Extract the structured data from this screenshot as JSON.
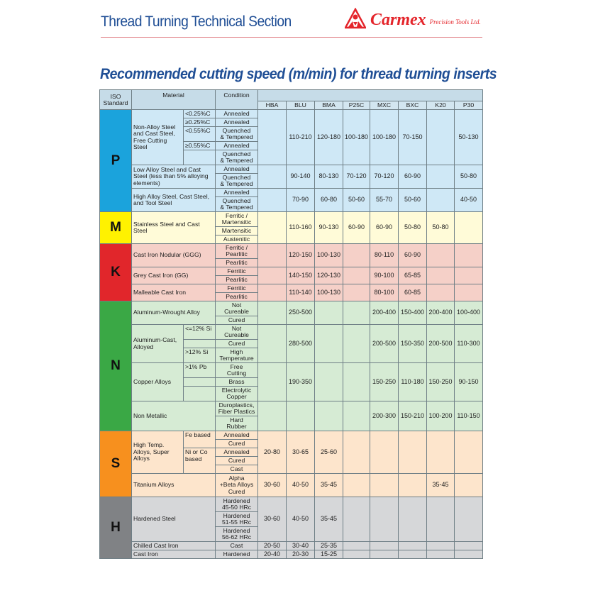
{
  "header": {
    "section_title": "Thread Turning Technical Section",
    "brand": "Carmex",
    "brand_sub": "Precision Tools Ltd.",
    "main_title": "Recommended cutting speed (m/min) for thread turning inserts"
  },
  "table": {
    "col_iso": "ISO\nStandard",
    "col_material": "Material",
    "col_condition": "Condition",
    "grades": [
      "HBA",
      "BLU",
      "BMA",
      "P25C",
      "MXC",
      "BXC",
      "K20",
      "P30"
    ],
    "groups": [
      {
        "iso": "P",
        "color": "#1ba3dc",
        "bg": "#cfe8f6",
        "materials": [
          {
            "name": "Non-Alloy Steel and Cast Steel, Free Cutting Steel",
            "sub": [
              {
                "label": "<0.25%C",
                "rows": 1
              },
              {
                "label": "≥0.25%C",
                "rows": 1
              },
              {
                "label": "<0.55%C",
                "rows": 1
              },
              {
                "label": "≥0.55%C",
                "rows": 1
              },
              {
                "label": "",
                "rows": 1
              }
            ],
            "conditions": [
              "Annealed",
              "Annealed",
              "Quenched\n& Tempered",
              "Annealed",
              "Quenched\n& Tempered"
            ],
            "speeds": [
              "",
              "110-210",
              "120-180",
              "100-180",
              "100-180",
              "70-150",
              "",
              "50-130"
            ]
          },
          {
            "name": "Low Alloy Steel and Cast Steel (less than 5% alloying elements)",
            "conditions": [
              "Annealed",
              "Quenched\n& Tempered"
            ],
            "speeds": [
              "",
              "90-140",
              "80-130",
              "70-120",
              "70-120",
              "60-90",
              "",
              "50-80"
            ]
          },
          {
            "name": "High Alloy Steel, Cast Steel, and Tool Steel",
            "conditions": [
              "Annealed",
              "Quenched\n& Tempered"
            ],
            "speeds": [
              "",
              "70-90",
              "60-80",
              "50-60",
              "55-70",
              "50-60",
              "",
              "40-50"
            ]
          }
        ]
      },
      {
        "iso": "M",
        "color": "#fff200",
        "bg": "#fffbd8",
        "materials": [
          {
            "name": "Stainless Steel and Cast Steel",
            "conditions": [
              "Ferritic /\nMartensitic",
              "Martensitic",
              "Austenitic"
            ],
            "speeds": [
              "",
              "110-160",
              "90-130",
              "60-90",
              "60-90",
              "50-80",
              "50-80",
              ""
            ]
          }
        ]
      },
      {
        "iso": "K",
        "color": "#e1262b",
        "bg": "#f5d0c8",
        "materials": [
          {
            "name": "Cast Iron Nodular (GGG)",
            "conditions": [
              "Ferritic /\nPearlitic",
              "Pearlitic"
            ],
            "speeds": [
              "",
              "120-150",
              "100-130",
              "",
              "80-110",
              "60-90",
              "",
              ""
            ]
          },
          {
            "name": "Grey Cast Iron (GG)",
            "conditions": [
              "Ferritic",
              "Pearlitic"
            ],
            "speeds": [
              "",
              "140-150",
              "120-130",
              "",
              "90-100",
              "65-85",
              "",
              ""
            ]
          },
          {
            "name": "Malleable Cast Iron",
            "conditions": [
              "Ferritic",
              "Pearlitic"
            ],
            "speeds": [
              "",
              "110-140",
              "100-130",
              "",
              "80-100",
              "60-85",
              "",
              ""
            ]
          }
        ]
      },
      {
        "iso": "N",
        "color": "#3aa845",
        "bg": "#d6ebd4",
        "materials": [
          {
            "name": "Aluminum-Wrought Alloy",
            "conditions": [
              "Not\nCureable",
              "Cured"
            ],
            "speeds": [
              "",
              "250-500",
              "",
              "",
              "200-400",
              "150-400",
              "200-400",
              "100-400"
            ]
          },
          {
            "name": "Aluminum-Cast, Alloyed",
            "sub": [
              {
                "label": "<=12% Si",
                "rows": 1
              },
              {
                "label": "",
                "rows": 1
              },
              {
                "label": ">12% Si",
                "rows": 1
              }
            ],
            "conditions": [
              "Not\nCureable",
              "Cured",
              "High\nTemperature"
            ],
            "speeds": [
              "",
              "280-500",
              "",
              "",
              "200-500",
              "150-350",
              "200-500",
              "110-300"
            ]
          },
          {
            "name": "Copper Alloys",
            "sub": [
              {
                "label": ">1% Pb",
                "rows": 1
              },
              {
                "label": "",
                "rows": 1
              },
              {
                "label": "",
                "rows": 1
              }
            ],
            "conditions": [
              "Free\nCutting",
              "Brass",
              "Electrolytic\nCopper"
            ],
            "speeds": [
              "",
              "190-350",
              "",
              "",
              "150-250",
              "110-180",
              "150-250",
              "90-150"
            ]
          },
          {
            "name": "Non Metallic",
            "conditions": [
              "Duroplastics,\nFiber Plastics",
              "Hard\nRubber"
            ],
            "speeds": [
              "",
              "",
              "",
              "",
              "200-300",
              "150-210",
              "100-200",
              "110-150"
            ]
          }
        ]
      },
      {
        "iso": "S",
        "color": "#f7901e",
        "bg": "#fde5cc",
        "materials": [
          {
            "name": "High Temp. Alloys, Super Alloys",
            "sub": [
              {
                "label": "Fe based",
                "rows": 2
              },
              {
                "label": "Ni or Co based",
                "rows": 3
              }
            ],
            "conditions": [
              "Annealed",
              "Cured",
              "Annealed",
              "Cured",
              "Cast"
            ],
            "speeds": [
              "20-80",
              "30-65",
              "25-60",
              "",
              "",
              "",
              "",
              ""
            ]
          },
          {
            "name": "Titanium Alloys",
            "conditions": [
              "Alpha\n+Beta Alloys\nCured"
            ],
            "speeds": [
              "30-60",
              "40-50",
              "35-45",
              "",
              "",
              "",
              "35-45",
              ""
            ]
          }
        ]
      },
      {
        "iso": "H",
        "color": "#808285",
        "bg": "#d6d7d9",
        "materials": [
          {
            "name": "Hardened Steel",
            "conditions": [
              "Hardened\n45-50 HRc",
              "Hardened\n51-55 HRc",
              "Hardened\n56-62 HRc"
            ],
            "speeds": [
              "30-60",
              "40-50",
              "35-45",
              "",
              "",
              "",
              "",
              ""
            ]
          },
          {
            "name": "Chilled Cast Iron",
            "conditions": [
              "Cast"
            ],
            "speeds": [
              "20-50",
              "30-40",
              "25-35",
              "",
              "",
              "",
              "",
              ""
            ]
          },
          {
            "name": "Cast Iron",
            "conditions": [
              "Hardened"
            ],
            "speeds": [
              "20-40",
              "20-30",
              "15-25",
              "",
              "",
              "",
              "",
              ""
            ]
          }
        ]
      }
    ]
  }
}
